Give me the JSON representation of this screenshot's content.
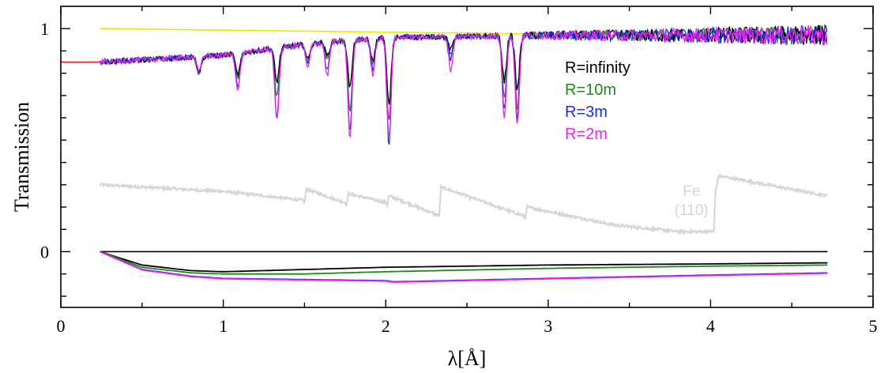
{
  "chart_data": {
    "type": "line",
    "xlabel": "λ[Å]",
    "ylabel": "Transmission",
    "xlim": [
      0,
      5
    ],
    "ylim": [
      -0.25,
      1.1
    ],
    "x_ticks": [
      0,
      1,
      2,
      3,
      4,
      5
    ],
    "x_tick_labels": [
      "0",
      "1",
      "2",
      "3",
      "4",
      "5"
    ],
    "y_tick_labels": [
      {
        "value": 1,
        "label": "1"
      },
      {
        "value": 0,
        "label": "0"
      }
    ],
    "grid": false,
    "legend_position": "top-right, inside",
    "legend": [
      {
        "label": "R=infinity",
        "color": "#000000"
      },
      {
        "label": "R=10m",
        "color": "#1a8a1a"
      },
      {
        "label": "R=3m",
        "color": "#1f2be0"
      },
      {
        "label": "R=2m",
        "color": "#ee22ee"
      }
    ],
    "annotations": [
      {
        "text": "Fe",
        "x": 3.98,
        "y": 0.28
      },
      {
        "text": "(110)",
        "x": 3.98,
        "y": 0.18
      }
    ],
    "reference_lines": [
      {
        "color": "#e8e800",
        "x": [
          0.24,
          4.72
        ],
        "y": [
          1.0,
          0.96
        ]
      },
      {
        "color": "#e02020",
        "x": [
          0.0,
          0.24
        ],
        "y": [
          0.85,
          0.85
        ]
      },
      {
        "color": "#000000",
        "x": [
          0.24,
          4.72
        ],
        "y": [
          0.0,
          0.0
        ]
      }
    ],
    "baseline_noise": {
      "x": [
        0.24,
        1.0,
        1.5,
        2.0,
        3.0,
        4.0,
        4.72
      ],
      "y": [
        0.85,
        0.88,
        0.93,
        0.96,
        0.97,
        0.97,
        0.97
      ]
    },
    "absorption_dips": [
      {
        "x": 0.85,
        "depth": [
          0.07,
          0.07,
          0.07,
          0.07
        ]
      },
      {
        "x": 1.09,
        "depth": [
          0.1,
          0.12,
          0.15,
          0.17
        ]
      },
      {
        "x": 1.33,
        "depth": [
          0.15,
          0.22,
          0.31,
          0.33
        ]
      },
      {
        "x": 1.52,
        "depth": [
          0.07,
          0.08,
          0.09,
          0.11
        ]
      },
      {
        "x": 1.64,
        "depth": [
          0.06,
          0.08,
          0.13,
          0.15
        ]
      },
      {
        "x": 1.78,
        "depth": [
          0.21,
          0.31,
          0.41,
          0.44
        ]
      },
      {
        "x": 1.92,
        "depth": [
          0.1,
          0.12,
          0.14,
          0.16
        ]
      },
      {
        "x": 2.02,
        "depth": [
          0.3,
          0.38,
          0.48,
          0.45
        ]
      },
      {
        "x": 2.4,
        "depth": [
          0.06,
          0.08,
          0.1,
          0.15
        ]
      },
      {
        "x": 2.73,
        "depth": [
          0.2,
          0.28,
          0.33,
          0.36
        ]
      },
      {
        "x": 2.81,
        "depth": [
          0.24,
          0.33,
          0.37,
          0.4
        ]
      }
    ],
    "series": [
      {
        "name": "R=infinity",
        "color": "#000000"
      },
      {
        "name": "R=10m",
        "color": "#1a8a1a"
      },
      {
        "name": "R=3m",
        "color": "#1f2be0"
      },
      {
        "name": "R=2m",
        "color": "#ee22ee"
      }
    ],
    "lower_curves": [
      {
        "color": "#000000",
        "x": [
          0.24,
          0.5,
          0.8,
          1.0,
          1.5,
          2.0,
          3.0,
          4.0,
          4.72
        ],
        "y": [
          0.0,
          -0.06,
          -0.085,
          -0.09,
          -0.08,
          -0.07,
          -0.06,
          -0.055,
          -0.05
        ]
      },
      {
        "color": "#1a8a1a",
        "x": [
          0.24,
          0.5,
          0.8,
          1.0,
          1.5,
          2.0,
          3.0,
          4.0,
          4.72
        ],
        "y": [
          0.0,
          -0.07,
          -0.095,
          -0.1,
          -0.1,
          -0.09,
          -0.075,
          -0.065,
          -0.06
        ]
      },
      {
        "color": "#1f2be0",
        "x": [
          0.24,
          0.5,
          0.8,
          1.0,
          1.5,
          2.0,
          2.05,
          3.0,
          4.0,
          4.72
        ],
        "y": [
          0.0,
          -0.08,
          -0.11,
          -0.12,
          -0.125,
          -0.13,
          -0.135,
          -0.12,
          -0.105,
          -0.095
        ]
      },
      {
        "color": "#ee22ee",
        "x": [
          0.24,
          0.5,
          0.8,
          1.0,
          1.5,
          2.0,
          2.05,
          3.0,
          4.0,
          4.72
        ],
        "y": [
          0.0,
          -0.082,
          -0.112,
          -0.122,
          -0.127,
          -0.132,
          -0.137,
          -0.122,
          -0.107,
          -0.097
        ]
      }
    ],
    "iron_transmission_curve": {
      "color": "#d6d6d6",
      "x": [
        0.24,
        0.5,
        1.0,
        1.25,
        1.49,
        1.5,
        1.51,
        1.75,
        1.76,
        1.77,
        2.0,
        2.01,
        2.02,
        2.3,
        2.33,
        2.34,
        2.85,
        2.86,
        2.87,
        3.4,
        3.8,
        4.02,
        4.03,
        4.05,
        4.72
      ],
      "y": [
        0.3,
        0.29,
        0.27,
        0.25,
        0.23,
        0.22,
        0.28,
        0.22,
        0.21,
        0.26,
        0.22,
        0.21,
        0.25,
        0.17,
        0.16,
        0.29,
        0.16,
        0.15,
        0.2,
        0.12,
        0.09,
        0.09,
        0.27,
        0.34,
        0.25
      ]
    }
  }
}
